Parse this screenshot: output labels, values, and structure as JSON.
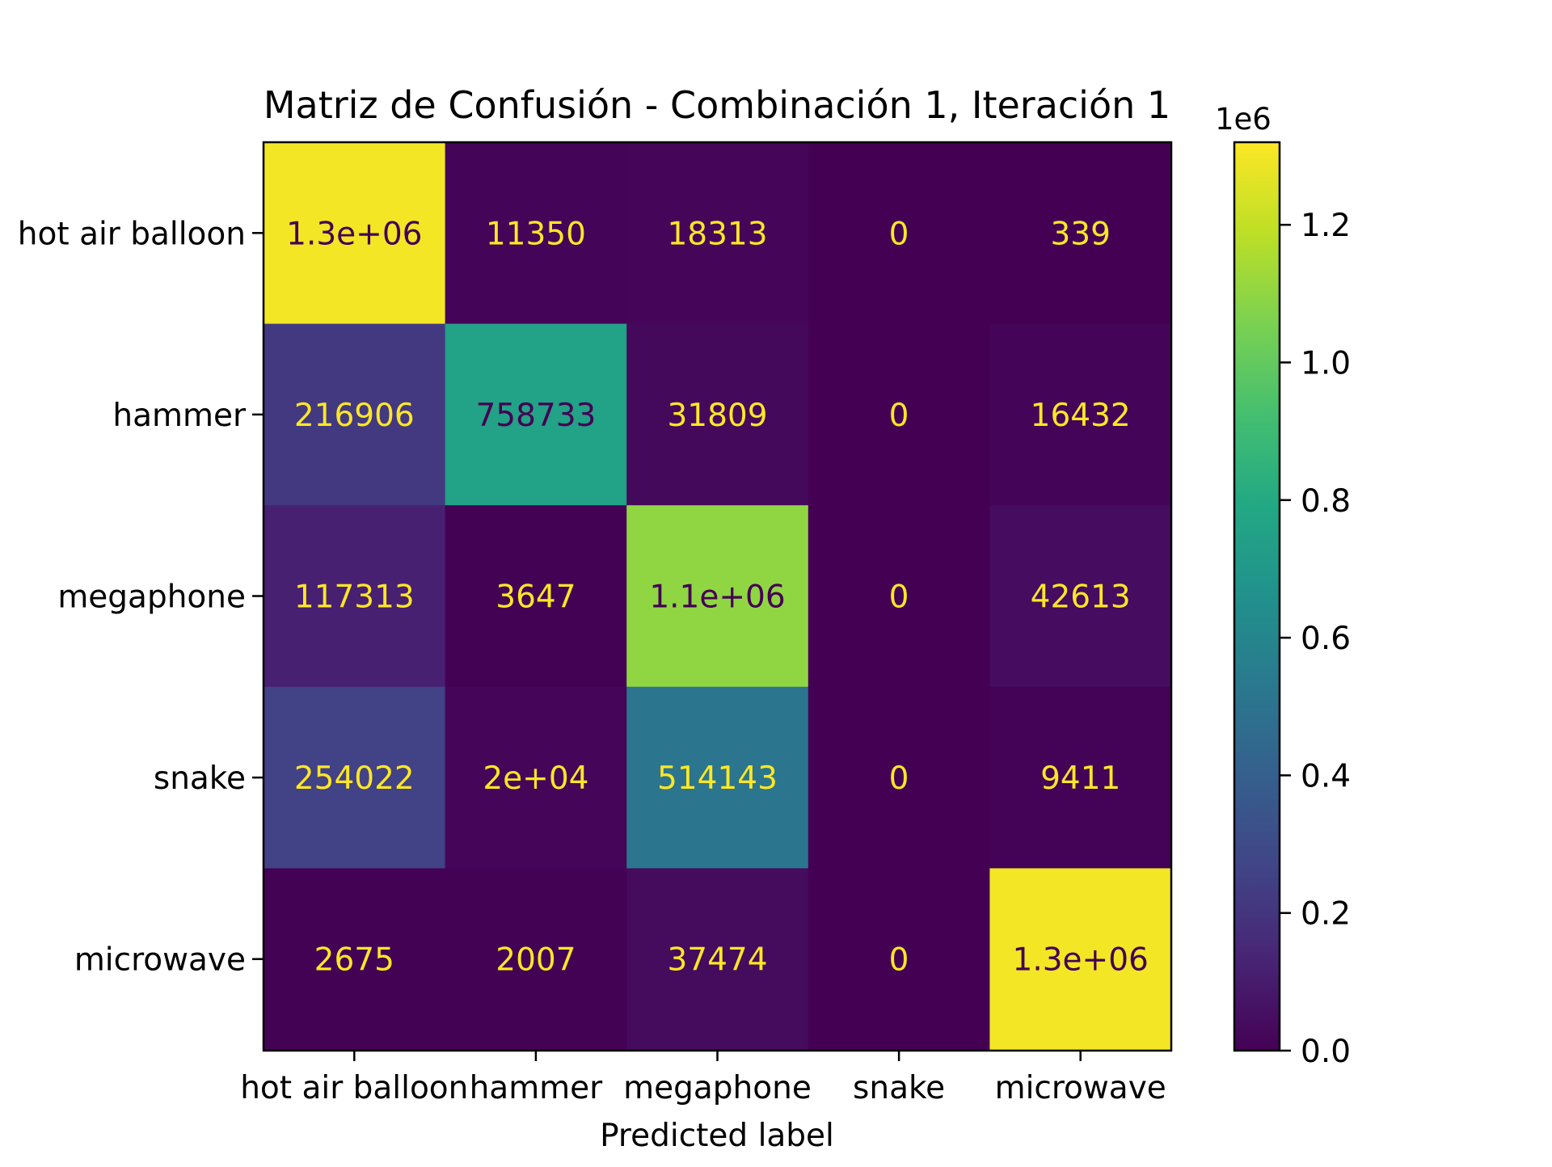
{
  "chart_data": {
    "type": "heatmap",
    "title": "Matriz de Confusión - Combinación 1, Iteración 1",
    "xlabel": "Predicted label",
    "ylabel": "",
    "row_labels": [
      "hot air balloon",
      "hammer",
      "megaphone",
      "snake",
      "microwave"
    ],
    "col_labels": [
      "hot air balloon",
      "hammer",
      "megaphone",
      "snake",
      "microwave"
    ],
    "values": [
      [
        1300000,
        11350,
        18313,
        0,
        339
      ],
      [
        216906,
        758733,
        31809,
        0,
        16432
      ],
      [
        117313,
        3647,
        1100000,
        0,
        42613
      ],
      [
        254022,
        20000,
        514143,
        0,
        9411
      ],
      [
        2675,
        2007,
        37474,
        0,
        1300000
      ]
    ],
    "cell_labels": [
      [
        "1.3e+06",
        "11350",
        "18313",
        "0",
        "339"
      ],
      [
        "216906",
        "758733",
        "31809",
        "0",
        "16432"
      ],
      [
        "117313",
        "3647",
        "1.1e+06",
        "0",
        "42613"
      ],
      [
        "254022",
        "2e+04",
        "514143",
        "0",
        "9411"
      ],
      [
        "2675",
        "2007",
        "37474",
        "0",
        "1.3e+06"
      ]
    ],
    "colormap": "viridis",
    "colorbar": {
      "range": [
        0,
        1320000
      ],
      "ticks": [
        0,
        200000,
        400000,
        600000,
        800000,
        1000000,
        1200000
      ],
      "tick_labels": [
        "0.0",
        "0.2",
        "0.4",
        "0.6",
        "0.8",
        "1.0",
        "1.2"
      ],
      "offset_label": "1e6"
    },
    "label_colors": {
      "light": "#fde725",
      "dark": "#440154"
    }
  }
}
